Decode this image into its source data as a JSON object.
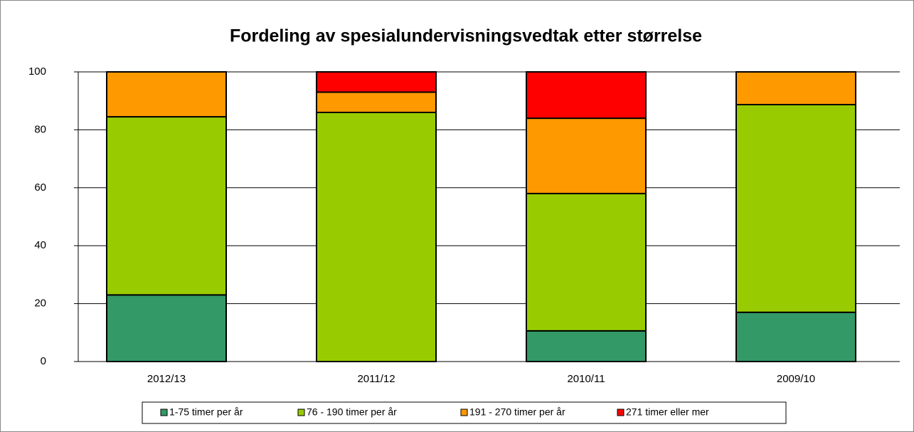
{
  "chart_data": {
    "type": "stacked_bar",
    "title": "Fordeling av spesialundervisningsvedtak etter størrelse",
    "categories": [
      "2012/13",
      "2011/12",
      "2010/11",
      "2009/10"
    ],
    "series": [
      {
        "name": "1-75 timer per år",
        "color": "#339966",
        "values": [
          23,
          0,
          10.6,
          17
        ]
      },
      {
        "name": "76 - 190 timer per år",
        "color": "#99cc00",
        "values": [
          61.5,
          86,
          47.4,
          71.7
        ]
      },
      {
        "name": "191 - 270 timer per år",
        "color": "#ff9900",
        "values": [
          15.5,
          7,
          26,
          11.3
        ]
      },
      {
        "name": "271 timer eller mer",
        "color": "#ff0000",
        "values": [
          0,
          7,
          16,
          0
        ]
      }
    ],
    "ylim": [
      0,
      100
    ],
    "yticks": [
      0,
      20,
      40,
      60,
      80,
      100
    ],
    "grid": true,
    "legend": "bottom"
  }
}
